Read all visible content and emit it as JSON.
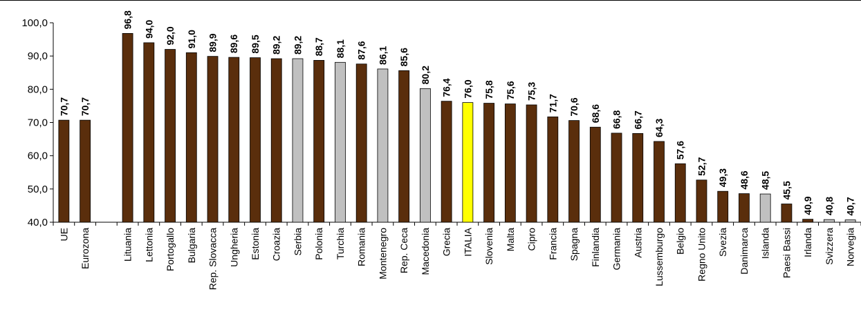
{
  "chart_data": {
    "type": "bar",
    "categories": [
      "UE",
      "Eurozona",
      "",
      "Lituania",
      "Lettonia",
      "Portogallo",
      "Bulgaria",
      "Rep. Slovacca",
      "Ungheria",
      "Estonia",
      "Croazia",
      "Serbia",
      "Polonia",
      "Turchia",
      "Romania",
      "Montenegro",
      "Rep. Ceca",
      "Macedonia",
      "Grecia",
      "ITALIA",
      "Slovenia",
      "Malta",
      "Cipro",
      "Francia",
      "Spagna",
      "Finlandia",
      "Germania",
      "Austria",
      "Lussemburgo",
      "Belgio",
      "Regno Unito",
      "Svezia",
      "Danimarca",
      "Islanda",
      "Paesi Bassi",
      "Irlanda",
      "Svizzera",
      "Norvegia"
    ],
    "values": [
      70.7,
      70.7,
      null,
      96.8,
      94.0,
      92.0,
      91.0,
      89.9,
      89.6,
      89.5,
      89.2,
      89.2,
      88.7,
      88.1,
      87.6,
      86.1,
      85.6,
      80.2,
      76.4,
      76.0,
      75.8,
      75.6,
      75.3,
      71.7,
      70.6,
      68.6,
      66.8,
      66.7,
      64.3,
      57.6,
      52.7,
      49.3,
      48.6,
      48.5,
      45.5,
      40.9,
      40.8,
      40.7
    ],
    "data_labels": [
      "70,7",
      "70,7",
      "",
      "96,8",
      "94,0",
      "92,0",
      "91,0",
      "89,9",
      "89,6",
      "89,5",
      "89,2",
      "89,2",
      "88,7",
      "88,1",
      "87,6",
      "86,1",
      "85,6",
      "80,2",
      "76,4",
      "76,0",
      "75,8",
      "75,6",
      "75,3",
      "71,7",
      "70,6",
      "68,6",
      "66,8",
      "66,7",
      "64,3",
      "57,6",
      "52,7",
      "49,3",
      "48,6",
      "48,5",
      "45,5",
      "40,9",
      "40,8",
      "40,7"
    ],
    "bar_colors": [
      "brown",
      "brown",
      "",
      "brown",
      "brown",
      "brown",
      "brown",
      "brown",
      "brown",
      "brown",
      "brown",
      "gray",
      "brown",
      "gray",
      "brown",
      "gray",
      "brown",
      "gray",
      "brown",
      "yellow",
      "brown",
      "brown",
      "brown",
      "brown",
      "brown",
      "brown",
      "brown",
      "brown",
      "brown",
      "brown",
      "brown",
      "brown",
      "brown",
      "gray",
      "brown",
      "brown",
      "gray",
      "gray"
    ],
    "colors": {
      "brown": "#5a2e0c",
      "gray": "#c0c0c0",
      "yellow": "#ffff00",
      "outline": "#000000"
    },
    "ylim": [
      40,
      100
    ],
    "yticks": [
      40,
      50,
      60,
      70,
      80,
      90,
      100
    ],
    "ytick_labels": [
      "40,0",
      "50,0",
      "60,0",
      "70,0",
      "80,0",
      "90,0",
      "100,0"
    ],
    "grid": false,
    "legend": "none",
    "title": "",
    "xlabel": "",
    "ylabel": ""
  }
}
